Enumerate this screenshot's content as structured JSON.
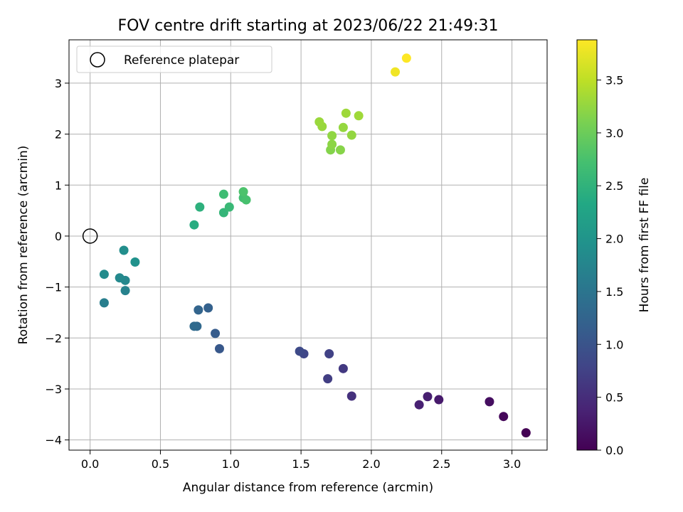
{
  "chart_data": {
    "type": "scatter",
    "title": "FOV centre drift starting at 2023/06/22 21:49:31",
    "xlabel": "Angular distance from reference (arcmin)",
    "ylabel": "Rotation from reference (arcmin)",
    "xlim": [
      -0.15,
      3.25
    ],
    "ylim": [
      -4.2,
      3.85
    ],
    "xticks": [
      0.0,
      0.5,
      1.0,
      1.5,
      2.0,
      2.5,
      3.0
    ],
    "xtick_labels": [
      "0.0",
      "0.5",
      "1.0",
      "1.5",
      "2.0",
      "2.5",
      "3.0"
    ],
    "yticks": [
      -4,
      -3,
      -2,
      -1,
      0,
      1,
      2,
      3
    ],
    "ytick_labels": [
      "−4",
      "−3",
      "−2",
      "−1",
      "0",
      "1",
      "2",
      "3"
    ],
    "grid": true,
    "legend": {
      "placement": "top-left",
      "entries": [
        "Reference platepar"
      ]
    },
    "reference_point": {
      "x": 0.0,
      "y": 0.0,
      "marker": "open-circle"
    },
    "colorbar": {
      "label": "Hours from first FF file",
      "colormap": "viridis",
      "range": [
        0.0,
        3.88
      ],
      "ticks": [
        0.0,
        0.5,
        1.0,
        1.5,
        2.0,
        2.5,
        3.0,
        3.5
      ],
      "tick_labels": [
        "0.0",
        "0.5",
        "1.0",
        "1.5",
        "2.0",
        "2.5",
        "3.0",
        "3.5"
      ]
    },
    "points": [
      {
        "x": 3.1,
        "y": -3.86,
        "c": 0.0
      },
      {
        "x": 2.94,
        "y": -3.54,
        "c": 0.07
      },
      {
        "x": 2.84,
        "y": -3.25,
        "c": 0.14
      },
      {
        "x": 2.48,
        "y": -3.21,
        "c": 0.28
      },
      {
        "x": 2.4,
        "y": -3.15,
        "c": 0.33
      },
      {
        "x": 2.34,
        "y": -3.31,
        "c": 0.36
      },
      {
        "x": 1.86,
        "y": -3.14,
        "c": 0.55
      },
      {
        "x": 1.8,
        "y": -2.6,
        "c": 0.64
      },
      {
        "x": 1.69,
        "y": -2.8,
        "c": 0.7
      },
      {
        "x": 1.7,
        "y": -2.31,
        "c": 0.75
      },
      {
        "x": 1.52,
        "y": -2.31,
        "c": 0.82
      },
      {
        "x": 1.49,
        "y": -2.26,
        "c": 0.86
      },
      {
        "x": 0.92,
        "y": -2.21,
        "c": 1.06
      },
      {
        "x": 0.89,
        "y": -1.91,
        "c": 1.12
      },
      {
        "x": 0.84,
        "y": -1.41,
        "c": 1.2
      },
      {
        "x": 0.77,
        "y": -1.45,
        "c": 1.25
      },
      {
        "x": 0.76,
        "y": -1.77,
        "c": 1.3
      },
      {
        "x": 0.74,
        "y": -1.77,
        "c": 1.33
      },
      {
        "x": 0.1,
        "y": -1.31,
        "c": 1.65
      },
      {
        "x": 0.25,
        "y": -1.07,
        "c": 1.7
      },
      {
        "x": 0.25,
        "y": -0.87,
        "c": 1.78
      },
      {
        "x": 0.21,
        "y": -0.82,
        "c": 1.82
      },
      {
        "x": 0.1,
        "y": -0.75,
        "c": 1.85
      },
      {
        "x": 0.24,
        "y": -0.28,
        "c": 1.9
      },
      {
        "x": 0.32,
        "y": -0.51,
        "c": 1.96
      },
      {
        "x": 0.74,
        "y": 0.22,
        "c": 2.4
      },
      {
        "x": 0.78,
        "y": 0.57,
        "c": 2.47
      },
      {
        "x": 0.95,
        "y": 0.46,
        "c": 2.55
      },
      {
        "x": 0.99,
        "y": 0.57,
        "c": 2.6
      },
      {
        "x": 0.95,
        "y": 0.82,
        "c": 2.66
      },
      {
        "x": 1.09,
        "y": 0.75,
        "c": 2.7
      },
      {
        "x": 1.11,
        "y": 0.71,
        "c": 2.74
      },
      {
        "x": 1.09,
        "y": 0.87,
        "c": 2.77
      },
      {
        "x": 1.71,
        "y": 1.69,
        "c": 3.16
      },
      {
        "x": 1.78,
        "y": 1.69,
        "c": 3.18
      },
      {
        "x": 1.72,
        "y": 1.8,
        "c": 3.21
      },
      {
        "x": 1.72,
        "y": 1.97,
        "c": 3.23
      },
      {
        "x": 1.86,
        "y": 1.98,
        "c": 3.25
      },
      {
        "x": 1.8,
        "y": 2.13,
        "c": 3.26
      },
      {
        "x": 1.65,
        "y": 2.15,
        "c": 3.28
      },
      {
        "x": 1.63,
        "y": 2.24,
        "c": 3.29
      },
      {
        "x": 1.82,
        "y": 2.41,
        "c": 3.31
      },
      {
        "x": 1.91,
        "y": 2.36,
        "c": 3.32
      },
      {
        "x": 2.17,
        "y": 3.22,
        "c": 3.8
      },
      {
        "x": 2.25,
        "y": 3.49,
        "c": 3.88
      }
    ]
  }
}
